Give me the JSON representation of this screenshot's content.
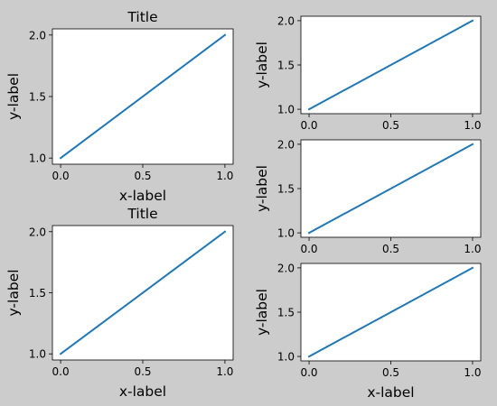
{
  "figure": {
    "background": "#cccccc",
    "line_color": "#1f77b4"
  },
  "chart_data": [
    {
      "type": "line",
      "title": "Title",
      "xlabel": "x-label",
      "ylabel": "y-label",
      "xlim": [
        -0.05,
        1.05
      ],
      "ylim": [
        0.95,
        2.05
      ],
      "xticks": [
        0.0,
        0.5,
        1.0
      ],
      "xtick_labels": [
        "0.0",
        "0.5",
        "1.0"
      ],
      "yticks": [
        1.0,
        1.5,
        2.0
      ],
      "ytick_labels": [
        "1.0",
        "1.5",
        "2.0"
      ],
      "series": [
        {
          "x": [
            0,
            1
          ],
          "y": [
            1,
            2
          ]
        }
      ]
    },
    {
      "type": "line",
      "title": "Title",
      "xlabel": "x-label",
      "ylabel": "y-label",
      "xlim": [
        -0.05,
        1.05
      ],
      "ylim": [
        0.95,
        2.05
      ],
      "xticks": [
        0.0,
        0.5,
        1.0
      ],
      "xtick_labels": [
        "0.0",
        "0.5",
        "1.0"
      ],
      "yticks": [
        1.0,
        1.5,
        2.0
      ],
      "ytick_labels": [
        "1.0",
        "1.5",
        "2.0"
      ],
      "series": [
        {
          "x": [
            0,
            1
          ],
          "y": [
            1,
            2
          ]
        }
      ]
    },
    {
      "type": "line",
      "title": "",
      "xlabel": "",
      "ylabel": "y-label",
      "xlim": [
        -0.05,
        1.05
      ],
      "ylim": [
        0.95,
        2.05
      ],
      "xticks": [
        0.0,
        0.5,
        1.0
      ],
      "xtick_labels": [
        "0.0",
        "0.5",
        "1.0"
      ],
      "yticks": [
        1.0,
        1.5,
        2.0
      ],
      "ytick_labels": [
        "1.0",
        "1.5",
        "2.0"
      ],
      "series": [
        {
          "x": [
            0,
            1
          ],
          "y": [
            1,
            2
          ]
        }
      ]
    },
    {
      "type": "line",
      "title": "",
      "xlabel": "",
      "ylabel": "y-label",
      "xlim": [
        -0.05,
        1.05
      ],
      "ylim": [
        0.95,
        2.05
      ],
      "xticks": [
        0.0,
        0.5,
        1.0
      ],
      "xtick_labels": [
        "0.0",
        "0.5",
        "1.0"
      ],
      "yticks": [
        1.0,
        1.5,
        2.0
      ],
      "ytick_labels": [
        "1.0",
        "1.5",
        "2.0"
      ],
      "series": [
        {
          "x": [
            0,
            1
          ],
          "y": [
            1,
            2
          ]
        }
      ]
    },
    {
      "type": "line",
      "title": "",
      "xlabel": "x-label",
      "ylabel": "y-label",
      "xlim": [
        -0.05,
        1.05
      ],
      "ylim": [
        0.95,
        2.05
      ],
      "xticks": [
        0.0,
        0.5,
        1.0
      ],
      "xtick_labels": [
        "0.0",
        "0.5",
        "1.0"
      ],
      "yticks": [
        1.0,
        1.5,
        2.0
      ],
      "ytick_labels": [
        "1.0",
        "1.5",
        "2.0"
      ],
      "series": [
        {
          "x": [
            0,
            1
          ],
          "y": [
            1,
            2
          ]
        }
      ]
    }
  ]
}
